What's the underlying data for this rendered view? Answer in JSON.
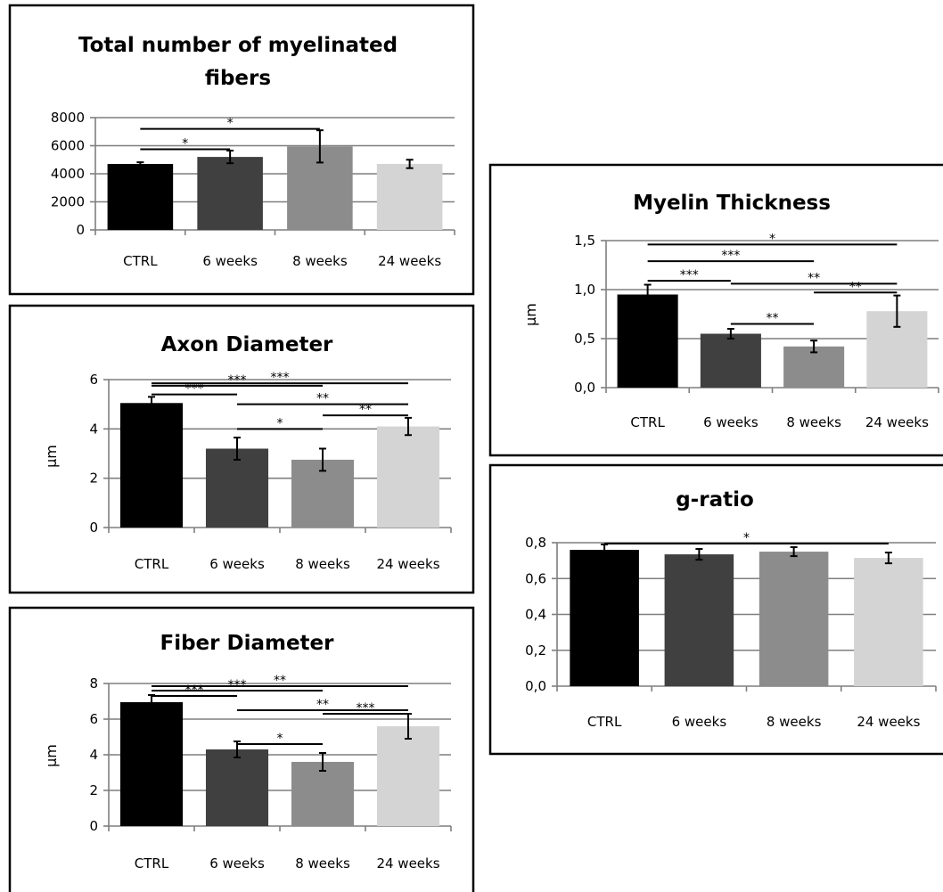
{
  "chart_data": [
    {
      "id": "fibers",
      "type": "bar",
      "title": "Total number of myelinated fibers",
      "title_lines": [
        "Total number of myelinated",
        "fibers"
      ],
      "ylabel": "",
      "categories": [
        "CTRL",
        "6 weeks",
        "8 weeks",
        "24 weeks"
      ],
      "values": [
        4700,
        5200,
        5950,
        4700
      ],
      "errors": [
        120,
        450,
        1150,
        300
      ],
      "ylim": [
        0,
        8000
      ],
      "yticks": [
        0,
        2000,
        4000,
        6000,
        8000
      ],
      "ytick_labels": [
        "0",
        "2000",
        "4000",
        "6000",
        "8000"
      ],
      "grid": true,
      "bar_colors": [
        "#000000",
        "#404040",
        "#8c8c8c",
        "#d4d4d4"
      ],
      "significance": [
        {
          "from": 0,
          "to": 2,
          "y": 7200,
          "label": "*"
        },
        {
          "from": 0,
          "to": 1,
          "y": 5750,
          "label": "*"
        }
      ]
    },
    {
      "id": "axon",
      "type": "bar",
      "title": "Axon Diameter",
      "title_lines": [
        "Axon Diameter"
      ],
      "ylabel": "µm",
      "categories": [
        "CTRL",
        "6 weeks",
        "8 weeks",
        "24 weeks"
      ],
      "values": [
        5.05,
        3.2,
        2.75,
        4.1
      ],
      "errors": [
        0.25,
        0.45,
        0.45,
        0.35
      ],
      "ylim": [
        0,
        6
      ],
      "yticks": [
        0,
        2,
        4,
        6
      ],
      "ytick_labels": [
        "0",
        "2",
        "4",
        "6"
      ],
      "grid": true,
      "bar_colors": [
        "#000000",
        "#404040",
        "#8c8c8c",
        "#d4d4d4"
      ],
      "significance": [
        {
          "from": 0,
          "to": 3,
          "y": 5.85,
          "label": "***"
        },
        {
          "from": 0,
          "to": 2,
          "y": 5.75,
          "label": "***"
        },
        {
          "from": 0,
          "to": 1,
          "y": 5.4,
          "label": "***"
        },
        {
          "from": 1,
          "to": 3,
          "y": 5.0,
          "label": "**"
        },
        {
          "from": 1,
          "to": 2,
          "y": 4.0,
          "label": "*"
        },
        {
          "from": 2,
          "to": 3,
          "y": 4.55,
          "label": "**"
        }
      ]
    },
    {
      "id": "fiber",
      "type": "bar",
      "title": "Fiber Diameter",
      "title_lines": [
        "Fiber Diameter"
      ],
      "ylabel": "µm",
      "categories": [
        "CTRL",
        "6 weeks",
        "8 weeks",
        "24 weeks"
      ],
      "values": [
        6.95,
        4.3,
        3.6,
        5.6
      ],
      "errors": [
        0.4,
        0.45,
        0.5,
        0.7
      ],
      "ylim": [
        0,
        8
      ],
      "yticks": [
        0,
        2,
        4,
        6,
        8
      ],
      "ytick_labels": [
        "0",
        "2",
        "4",
        "6",
        "8"
      ],
      "grid": true,
      "bar_colors": [
        "#000000",
        "#404040",
        "#8c8c8c",
        "#d4d4d4"
      ],
      "significance": [
        {
          "from": 0,
          "to": 3,
          "y": 7.85,
          "label": "**"
        },
        {
          "from": 0,
          "to": 2,
          "y": 7.6,
          "label": "***"
        },
        {
          "from": 0,
          "to": 1,
          "y": 7.3,
          "label": "***"
        },
        {
          "from": 1,
          "to": 3,
          "y": 6.5,
          "label": "**"
        },
        {
          "from": 1,
          "to": 2,
          "y": 4.6,
          "label": "*"
        },
        {
          "from": 2,
          "to": 3,
          "y": 6.3,
          "label": "***"
        }
      ]
    },
    {
      "id": "myelin",
      "type": "bar",
      "title": "Myelin Thickness",
      "title_lines": [
        "Myelin Thickness"
      ],
      "ylabel": "µm",
      "categories": [
        "CTRL",
        "6 weeks",
        "8 weeks",
        "24 weeks"
      ],
      "values": [
        0.95,
        0.55,
        0.42,
        0.78
      ],
      "errors": [
        0.1,
        0.05,
        0.06,
        0.16
      ],
      "ylim": [
        0,
        1.5
      ],
      "yticks": [
        0,
        0.5,
        1.0,
        1.5
      ],
      "ytick_labels": [
        "0,0",
        "0,5",
        "1,0",
        "1,5"
      ],
      "grid": true,
      "bar_colors": [
        "#000000",
        "#404040",
        "#8c8c8c",
        "#d4d4d4"
      ],
      "significance": [
        {
          "from": 0,
          "to": 3,
          "y": 1.46,
          "label": "*"
        },
        {
          "from": 0,
          "to": 2,
          "y": 1.29,
          "label": "***"
        },
        {
          "from": 0,
          "to": 1,
          "y": 1.09,
          "label": "***"
        },
        {
          "from": 1,
          "to": 3,
          "y": 1.06,
          "label": "**"
        },
        {
          "from": 1,
          "to": 2,
          "y": 0.65,
          "label": "**"
        },
        {
          "from": 2,
          "to": 3,
          "y": 0.97,
          "label": "**"
        }
      ]
    },
    {
      "id": "gratio",
      "type": "bar",
      "title": "g-ratio",
      "title_lines": [
        "g-ratio"
      ],
      "ylabel": "",
      "categories": [
        "CTRL",
        "6 weeks",
        "8 weeks",
        "24 weeks"
      ],
      "values": [
        0.76,
        0.735,
        0.75,
        0.715
      ],
      "errors": [
        0.03,
        0.03,
        0.025,
        0.03
      ],
      "ylim": [
        0,
        0.8
      ],
      "yticks": [
        0,
        0.2,
        0.4,
        0.6,
        0.8
      ],
      "ytick_labels": [
        "0,0",
        "0,2",
        "0,4",
        "0,6",
        "0,8"
      ],
      "grid": true,
      "bar_colors": [
        "#000000",
        "#404040",
        "#8c8c8c",
        "#d4d4d4"
      ],
      "significance": [
        {
          "from": 0,
          "to": 3,
          "y": 0.795,
          "label": "*"
        }
      ]
    }
  ]
}
